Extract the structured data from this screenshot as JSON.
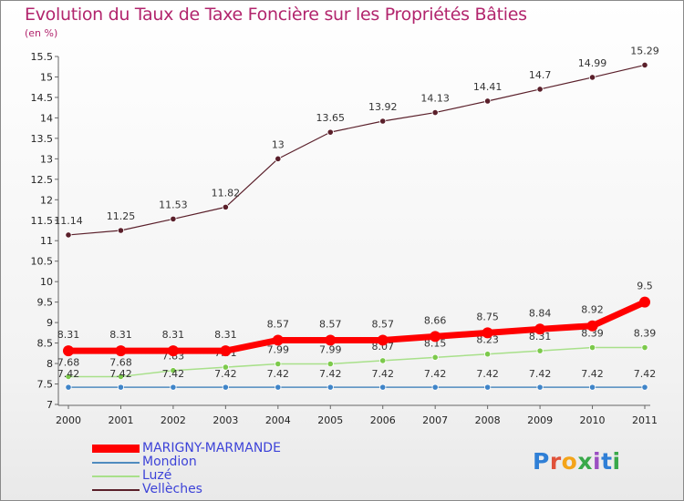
{
  "chart_data": {
    "type": "line",
    "title": "Evolution du Taux de Taxe Foncière sur les Propriétés Bâties",
    "subtitle": "(en %)",
    "x": [
      "2000",
      "2001",
      "2002",
      "2003",
      "2004",
      "2005",
      "2006",
      "2007",
      "2008",
      "2009",
      "2010",
      "2011"
    ],
    "ylim": [
      7,
      15.5
    ],
    "yticks": [
      "7",
      "7.5",
      "8",
      "8.5",
      "9",
      "9.5",
      "10",
      "10.5",
      "11",
      "11.5",
      "12",
      "12.5",
      "13",
      "13.5",
      "14",
      "14.5",
      "15",
      "15.5"
    ],
    "grid": false,
    "series": [
      {
        "name": "Vellèches",
        "color": "#5a1f2a",
        "marker": "#5a1f2a",
        "values": [
          11.14,
          11.25,
          11.53,
          11.82,
          13,
          13.65,
          13.92,
          14.13,
          14.41,
          14.7,
          14.99,
          15.29
        ],
        "labels": [
          "11.14",
          "11.25",
          "11.53",
          "11.82",
          "13",
          "13.65",
          "13.92",
          "14.13",
          "14.41",
          "14.7",
          "14.99",
          "15.29"
        ]
      },
      {
        "name": "Luzé",
        "color": "#a8e08a",
        "marker": "#7cc94b",
        "values": [
          7.68,
          7.68,
          7.83,
          7.91,
          7.99,
          7.99,
          8.07,
          8.15,
          8.23,
          8.31,
          8.39,
          8.39
        ],
        "labels": [
          "7.68",
          "7.68",
          "7.83",
          "7.91",
          "7.99",
          "7.99",
          "8.07",
          "8.15",
          "8.23",
          "8.31",
          "8.39",
          "8.39"
        ]
      },
      {
        "name": "Mondion",
        "color": "#4f8bbf",
        "marker": "#3f84c8",
        "values": [
          7.42,
          7.42,
          7.42,
          7.42,
          7.42,
          7.42,
          7.42,
          7.42,
          7.42,
          7.42,
          7.42,
          7.42
        ],
        "labels": [
          "7.42",
          "7.42",
          "7.42",
          "7.42",
          "7.42",
          "7.42",
          "7.42",
          "7.42",
          "7.42",
          "7.42",
          "7.42",
          "7.42"
        ]
      },
      {
        "name": "MARIGNY-MARMANDE",
        "color": "#ff0000",
        "marker": "#ff0000",
        "values": [
          8.31,
          8.31,
          8.31,
          8.31,
          8.57,
          8.57,
          8.57,
          8.66,
          8.75,
          8.84,
          8.92,
          9.5
        ],
        "labels": [
          "8.31",
          "8.31",
          "8.31",
          "8.31",
          "8.57",
          "8.57",
          "8.57",
          "8.66",
          "8.75",
          "8.84",
          "8.92",
          "9.5"
        ]
      }
    ],
    "legend": [
      {
        "name": "MARIGNY-MARMANDE",
        "color": "#ff0000"
      },
      {
        "name": "Mondion",
        "color": "#4f8bbf"
      },
      {
        "name": "Luzé",
        "color": "#a8e08a"
      },
      {
        "name": "Vellèches",
        "color": "#5a1f2a"
      }
    ],
    "legend_position": "bottom-left"
  },
  "logo": {
    "text": "Proxiti"
  }
}
